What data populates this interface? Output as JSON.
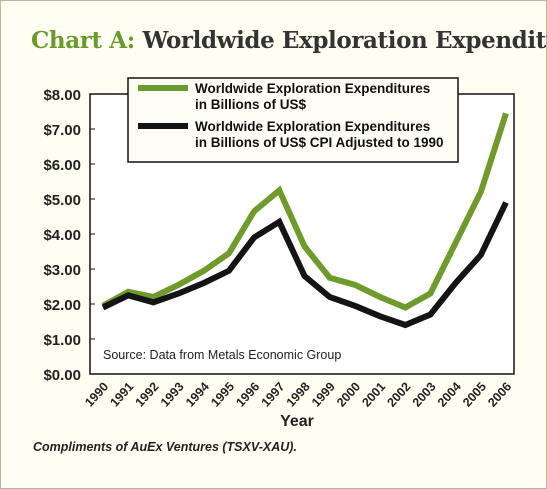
{
  "title": {
    "prefix": "Chart A:",
    "text": "Worldwide Exploration Expenditures"
  },
  "footer": "Compliments of AuEx Ventures (TSXV-XAU).",
  "colors": {
    "green": "#6e9b2c",
    "black": "#141414",
    "background": "#fffef3",
    "plot_background": "#ffffff"
  },
  "chart_data": {
    "type": "line",
    "title": "Worldwide Exploration Expenditures",
    "xlabel": "Year",
    "ylabel": "",
    "x": [
      "1990",
      "1991",
      "1992",
      "1993",
      "1994",
      "1995",
      "1996",
      "1997",
      "1998",
      "1999",
      "2000",
      "2001",
      "2002",
      "2003",
      "2004",
      "2005",
      "2006"
    ],
    "ylim": [
      0,
      8
    ],
    "yticks": [
      "$0.00",
      "$1.00",
      "$2.00",
      "$3.00",
      "$4.00",
      "$5.00",
      "$6.00",
      "$7.00",
      "$8.00"
    ],
    "grid": false,
    "legend_position": "top",
    "annotation": "Source: Data from Metals Economic Group",
    "series": [
      {
        "name": "Worldwide Exploration Expenditures in Billions of US$",
        "name_lines": [
          "Worldwide Exploration Expenditures",
          "in Billions of US$"
        ],
        "color": "#6e9b2c",
        "values": [
          1.95,
          2.35,
          2.2,
          2.55,
          2.95,
          3.45,
          4.65,
          5.25,
          3.65,
          2.75,
          2.55,
          2.2,
          1.9,
          2.3,
          3.75,
          5.2,
          7.45
        ]
      },
      {
        "name": "Worldwide Exploration Expenditures in Billions of US$ CPI Adjusted to 1990",
        "name_lines": [
          "Worldwide Exploration Expenditures",
          "in Billions of US$ CPI Adjusted to 1990"
        ],
        "color": "#141414",
        "values": [
          1.9,
          2.25,
          2.05,
          2.3,
          2.6,
          2.95,
          3.9,
          4.35,
          2.8,
          2.2,
          1.95,
          1.65,
          1.4,
          1.7,
          2.6,
          3.4,
          4.9
        ]
      }
    ]
  }
}
